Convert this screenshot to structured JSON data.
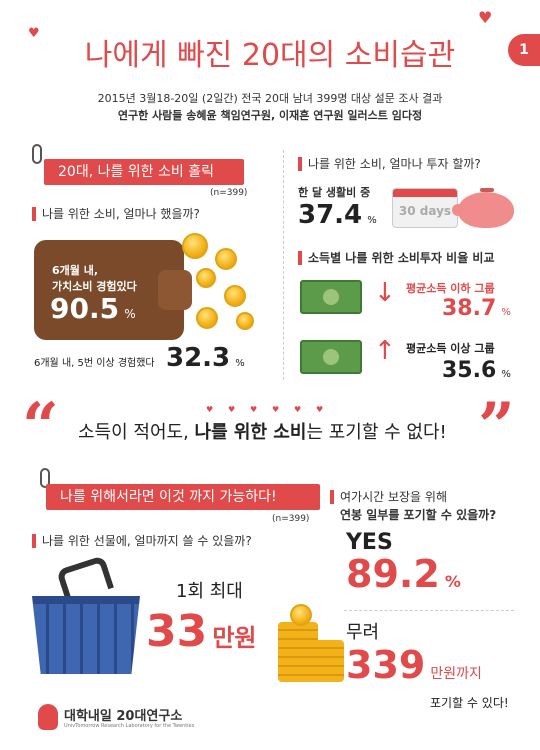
{
  "header": {
    "title": "나에게 빠진 20대의 소비습관",
    "page_number": "1",
    "subtitle_line1": "2015년 3월18-20일 (2일간) 전국 20대 남녀 399명 대상 설문 조사 결과",
    "subtitle_line2": "연구한 사람들 송혜윤 책임연구원, 이재흔 연구원 일러스트 임다정"
  },
  "section1": {
    "banner": "20대, 나를 위한 소비 홀릭",
    "n": "(n=399)",
    "question": "나를 위한 소비, 얼마나 했을까?",
    "stat1_label_a": "6개월 내,",
    "stat1_label_b": "가치소비 경험있다",
    "stat1_value": "90.5",
    "stat1_unit": "%",
    "stat2_label": "6개월 내, 5번 이상 경험했다",
    "stat2_value": "32.3",
    "stat2_unit": "%"
  },
  "section2": {
    "question": "나를 위한 소비, 얼마나 투자 할까?",
    "monthly_label": "한 달 생활비 중",
    "monthly_value": "37.4",
    "monthly_unit": "%",
    "calendar_text": "30 days",
    "compare_title": "소득별 나를 위한 소비투자 비율 비교",
    "low_label": "평균소득 이하 그룹",
    "low_value": "38.7",
    "high_label": "평균소득 이상 그룹",
    "high_value": "35.6",
    "unit": "%"
  },
  "quote": {
    "open": "“",
    "close": "”",
    "text_a": "소득이 적어도, ",
    "text_b": "나를 위한 소비",
    "text_c": "는 포기할 수 없다!"
  },
  "section3": {
    "banner": "나를 위해서라면 이것 까지 가능하다!",
    "n": "(n=399)",
    "question": "나를 위한 선물에, 얼마까지 쓸 수 있을까?",
    "per_label": "1회 최대",
    "per_value": "33",
    "per_unit": "만원"
  },
  "section4": {
    "question_line1": "여가시간 보장을 위해",
    "question_line2": "연봉 일부를 포기할 수 있을까?",
    "yes_label": "YES",
    "yes_value": "89.2",
    "yes_unit": "%",
    "amount_prefix": "무려",
    "amount_value": "339",
    "amount_unit": "만원까지",
    "amount_suffix": "포기할 수 있다!"
  },
  "footer": {
    "logo_text": "대학내일 20대연구소",
    "logo_sub": "UnivTomorrow Research Laboratory for the Twenties"
  },
  "colors": {
    "accent": "#e04a4a",
    "wallet": "#7a4a2a",
    "money": "#5c9b4a",
    "coin": "#f3b21a",
    "basket": "#3f66b0"
  }
}
